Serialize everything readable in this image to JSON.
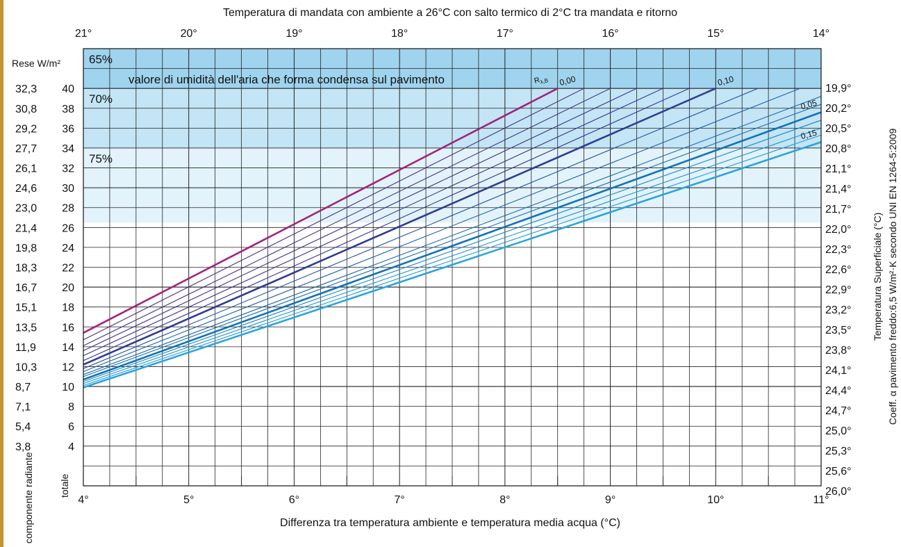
{
  "chart_data": {
    "type": "line",
    "title": "Temperatura di mandata con ambiente a 26°C con salto termico di 2°C tra mandata e ritorno",
    "xlabel": "Differenza tra temperatura ambiente e temperatura media acqua (°C)",
    "ylabel_left": "Rese W/m²",
    "ylabel_right": "Temperatura Superficiale (°C)",
    "ylabel_far_right": "Coeff. α pavimento freddo:6,5 W/m²·K secondo UNI EN 1264-5:2009",
    "col_label_radiante": "componente radiante",
    "col_label_totale": "totale",
    "xlim": [
      4,
      11
    ],
    "ylim": [
      0,
      44
    ],
    "x_ticks": [
      "4°",
      "5°",
      "6°",
      "7°",
      "8°",
      "9°",
      "10°",
      "11°"
    ],
    "top_ticks": [
      "21°",
      "20°",
      "19°",
      "18°",
      "17°",
      "16°",
      "15°",
      "14°"
    ],
    "y_ticks_totale": [
      "40",
      "38",
      "36",
      "34",
      "32",
      "30",
      "28",
      "26",
      "24",
      "22",
      "20",
      "18",
      "16",
      "14",
      "12",
      "10",
      "8",
      "6",
      "4"
    ],
    "y_ticks_radiante": [
      "32,3",
      "30,8",
      "29,2",
      "27,7",
      "26,1",
      "24,6",
      "23,0",
      "21,4",
      "19,8",
      "18,3",
      "16,7",
      "15,1",
      "13,5",
      "11,9",
      "10,3",
      "8,7",
      "7,1",
      "5,4",
      "3,8"
    ],
    "y_ticks_surface": [
      "19,9°",
      "20,2°",
      "20,5°",
      "20,8°",
      "21,1°",
      "21,4°",
      "21,7°",
      "22,0°",
      "22,3°",
      "22,6°",
      "22,9°",
      "23,2°",
      "23,5°",
      "23,8°",
      "24,1°",
      "24,4°",
      "24,7°",
      "25,0°",
      "25,3°",
      "25,6°",
      "26,0°"
    ],
    "humidity_zones": [
      {
        "label": "65%",
        "from": 40,
        "to": 44,
        "color": "#9fd3ee"
      },
      {
        "label": "70%",
        "from": 34,
        "to": 40,
        "color": "#c3e5f5"
      },
      {
        "label": "75%",
        "from": 26.5,
        "to": 34,
        "color": "#e2f3fb"
      }
    ],
    "condensation_note": "valore di umidità dell'aria che forma condensa sul pavimento",
    "r_label": "R",
    "r_label_sub": "λ,B",
    "series_labels": [
      "0,00",
      "0,10",
      "0,05",
      "0,15"
    ],
    "series": [
      {
        "name": "0,00",
        "x": [
          4,
          8.5
        ],
        "y": [
          15.4,
          40
        ],
        "color": "#a3227e",
        "bold": true
      },
      {
        "name": "",
        "x": [
          4,
          8.75
        ],
        "y": [
          14.7,
          40
        ],
        "color": "#4a2f86",
        "bold": false
      },
      {
        "name": "",
        "x": [
          4,
          9.0
        ],
        "y": [
          14.1,
          40
        ],
        "color": "#453089",
        "bold": false
      },
      {
        "name": "",
        "x": [
          4,
          9.25
        ],
        "y": [
          13.6,
          40
        ],
        "color": "#40318b",
        "bold": false
      },
      {
        "name": "",
        "x": [
          4,
          9.5
        ],
        "y": [
          13.1,
          40
        ],
        "color": "#3a328d",
        "bold": false
      },
      {
        "name": "",
        "x": [
          4,
          9.75
        ],
        "y": [
          12.6,
          40
        ],
        "color": "#35338f",
        "bold": false
      },
      {
        "name": "0,10",
        "x": [
          4,
          10.0
        ],
        "y": [
          12.2,
          40
        ],
        "color": "#2f3c93",
        "bold": true
      },
      {
        "name": "",
        "x": [
          4,
          10.4
        ],
        "y": [
          11.8,
          40
        ],
        "color": "#244f9e",
        "bold": false
      },
      {
        "name": "",
        "x": [
          4,
          10.8
        ],
        "y": [
          11.5,
          40
        ],
        "color": "#1d5ea7",
        "bold": false
      },
      {
        "name": "",
        "x": [
          4,
          11.0
        ],
        "y": [
          11.2,
          39.2
        ],
        "color": "#1a66ad",
        "bold": false
      },
      {
        "name": "",
        "x": [
          4,
          11.0
        ],
        "y": [
          11.0,
          38.4
        ],
        "color": "#186cb2",
        "bold": false
      },
      {
        "name": "0,05",
        "x": [
          4,
          11.0
        ],
        "y": [
          10.7,
          37.6
        ],
        "color": "#1172b8",
        "bold": true
      },
      {
        "name": "",
        "x": [
          4,
          11.0
        ],
        "y": [
          10.5,
          36.8
        ],
        "color": "#1b85c4",
        "bold": false
      },
      {
        "name": "",
        "x": [
          4,
          11.0
        ],
        "y": [
          10.3,
          36.0
        ],
        "color": "#2092ce",
        "bold": false
      },
      {
        "name": "",
        "x": [
          4,
          11.0
        ],
        "y": [
          10.1,
          35.3
        ],
        "color": "#269bd6",
        "bold": false
      },
      {
        "name": "0,15",
        "x": [
          4,
          11.0
        ],
        "y": [
          9.9,
          34.6
        ],
        "color": "#2aa3de",
        "bold": true
      }
    ]
  }
}
